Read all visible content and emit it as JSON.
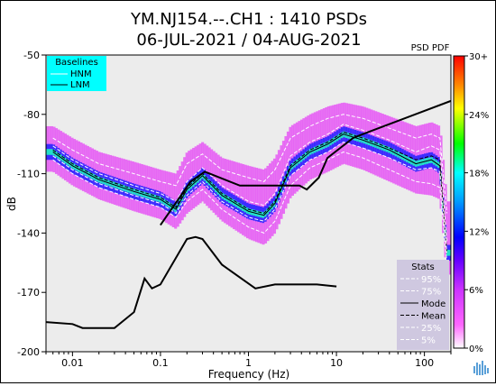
{
  "chart_data": {
    "type": "heatmap",
    "title_line1": "YM.NJ154.--.CH1 : 1410 PSDs",
    "title_line2": "06-JUL-2021 / 04-AUG-2021",
    "xlabel": "Frequency (Hz)",
    "ylabel": "dB",
    "x_scale": "log",
    "xlim": [
      0.005,
      200
    ],
    "ylim": [
      -200,
      -50
    ],
    "x_ticks": [
      0.01,
      0.1,
      1,
      10,
      100
    ],
    "x_tick_labels": [
      "0.01",
      "0.1",
      "1",
      "10",
      "100"
    ],
    "y_ticks": [
      -50,
      -80,
      -110,
      -140,
      -170,
      -200
    ],
    "y_tick_labels": [
      "-50",
      "-80",
      "-110",
      "-140",
      "-170",
      "-200"
    ],
    "colorbar": {
      "label": "PSD PDF",
      "ticks": [
        "30+",
        "24%",
        "18%",
        "12%",
        "6%",
        "0%"
      ],
      "colors": [
        "#ff0000",
        "#ff7a00",
        "#ffff00",
        "#00ff00",
        "#00ffff",
        "#0080ff",
        "#0000ff",
        "#8000ff",
        "#ff00ff",
        "#ffccff",
        "#ffffff"
      ]
    },
    "baselines": {
      "title": "Baselines",
      "items": [
        "HNM",
        "LNM"
      ],
      "HNM": {
        "x": [
          0.1,
          0.22,
          0.32,
          0.8,
          3.8,
          4.6,
          6.3,
          7.9,
          15.4,
          20,
          354.8
        ],
        "y": [
          -136,
          -114,
          -109,
          -116,
          -116,
          -118,
          -112,
          -102,
          -92,
          -90,
          -69
        ]
      },
      "LNM": {
        "x": [
          0.005,
          0.01,
          0.013,
          0.03,
          0.05,
          0.066,
          0.08,
          0.1,
          0.2,
          0.25,
          0.3,
          0.5,
          1.2,
          2.0,
          4.0,
          6.0,
          10.0
        ],
        "y": [
          -185,
          -186,
          -188,
          -188,
          -180,
          -163,
          -168,
          -166,
          -143,
          -142,
          -143,
          -156,
          -168,
          -166,
          -166,
          -166,
          -167
        ]
      }
    },
    "stats": {
      "title": "Stats",
      "items": [
        "95%",
        "75%",
        "Mode",
        "Mean",
        "25%",
        "5%"
      ]
    },
    "series": [
      {
        "name": "Mode",
        "x": [
          0.006,
          0.01,
          0.02,
          0.05,
          0.1,
          0.15,
          0.2,
          0.3,
          0.5,
          1,
          1.5,
          2,
          3,
          5,
          8,
          12,
          20,
          40,
          80,
          120,
          150,
          180
        ],
        "y": [
          -99,
          -106,
          -113,
          -119,
          -123,
          -128,
          -118,
          -111,
          -121,
          -129,
          -131,
          -125,
          -107,
          -99,
          -95,
          -90,
          -93,
          -98,
          -105,
          -103,
          -106,
          -150
        ]
      },
      {
        "name": "Mean",
        "x": [
          0.006,
          0.01,
          0.02,
          0.05,
          0.1,
          0.15,
          0.2,
          0.3,
          0.5,
          1,
          1.5,
          2,
          3,
          5,
          8,
          12,
          20,
          40,
          80,
          120,
          150,
          180
        ],
        "y": [
          -98,
          -105,
          -112,
          -118,
          -122,
          -127,
          -117,
          -110,
          -120,
          -128,
          -130,
          -124,
          -106,
          -98,
          -94,
          -89,
          -92,
          -97,
          -103,
          -101,
          -103,
          -150
        ]
      },
      {
        "name": "25%",
        "x": [
          0.006,
          0.01,
          0.02,
          0.05,
          0.1,
          0.15,
          0.2,
          0.3,
          0.5,
          1,
          1.5,
          2,
          3,
          5,
          8,
          12,
          20,
          40,
          80,
          120,
          150,
          180
        ],
        "y": [
          -101,
          -108,
          -115,
          -121,
          -125,
          -130,
          -121,
          -114,
          -124,
          -132,
          -134,
          -128,
          -111,
          -103,
          -99,
          -94,
          -97,
          -102,
          -108,
          -107,
          -109,
          -150
        ]
      },
      {
        "name": "75%",
        "x": [
          0.006,
          0.01,
          0.02,
          0.05,
          0.1,
          0.15,
          0.2,
          0.3,
          0.5,
          1,
          1.5,
          2,
          3,
          5,
          8,
          12,
          20,
          40,
          80,
          120,
          150,
          180
        ],
        "y": [
          -96,
          -103,
          -110,
          -116,
          -120,
          -124,
          -114,
          -107,
          -116,
          -124,
          -126,
          -120,
          -101,
          -94,
          -90,
          -85,
          -88,
          -93,
          -99,
          -96,
          -98,
          -145
        ]
      },
      {
        "name": "5%",
        "x": [
          0.006,
          0.01,
          0.02,
          0.05,
          0.1,
          0.15,
          0.2,
          0.3,
          0.5,
          1,
          1.5,
          2,
          3,
          5,
          8,
          12,
          20,
          40,
          80,
          120,
          150,
          180
        ],
        "y": [
          -103,
          -110,
          -117,
          -123,
          -127,
          -132,
          -124,
          -118,
          -128,
          -137,
          -140,
          -134,
          -116,
          -107,
          -103,
          -99,
          -102,
          -108,
          -114,
          -115,
          -117,
          -155
        ]
      },
      {
        "name": "95%",
        "x": [
          0.006,
          0.01,
          0.02,
          0.05,
          0.1,
          0.15,
          0.2,
          0.3,
          0.5,
          1,
          1.5,
          2,
          3,
          5,
          8,
          12,
          20,
          40,
          80,
          120,
          150,
          180
        ],
        "y": [
          -92,
          -98,
          -105,
          -110,
          -114,
          -116,
          -105,
          -100,
          -108,
          -112,
          -114,
          -108,
          -92,
          -86,
          -82,
          -80,
          -82,
          -87,
          -92,
          -90,
          -92,
          -130
        ]
      }
    ]
  }
}
